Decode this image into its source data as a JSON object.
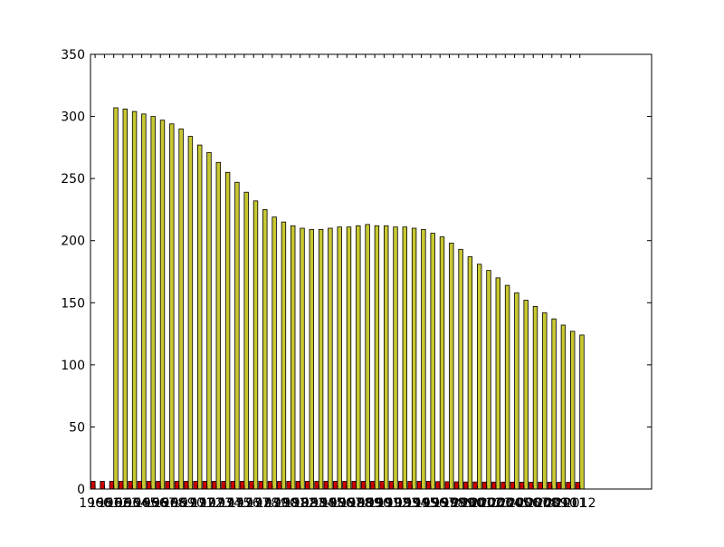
{
  "chart_data": {
    "type": "bar",
    "title": "",
    "xlabel": "",
    "ylabel": "",
    "ylim": [
      0,
      350
    ],
    "yticks": [
      0,
      50,
      100,
      150,
      200,
      250,
      300,
      350
    ],
    "grid": false,
    "categories": [
      "1960",
      "1961",
      "1962",
      "1963",
      "1964",
      "1965",
      "1966",
      "1967",
      "1968",
      "1969",
      "1970",
      "1971",
      "1972",
      "1973",
      "1974",
      "1975",
      "1976",
      "1977",
      "1978",
      "1979",
      "1980",
      "1981",
      "1982",
      "1983",
      "1984",
      "1985",
      "1986",
      "1987",
      "1988",
      "1989",
      "1990",
      "1991",
      "1992",
      "1993",
      "1994",
      "1995",
      "1996",
      "1997",
      "1998",
      "1999",
      "2000",
      "2001",
      "2002",
      "2003",
      "2004",
      "2005",
      "2006",
      "2007",
      "2008",
      "2009",
      "2010",
      "2011",
      "2012"
    ],
    "x_tick_labels": [
      "1960",
      "1961",
      "1962",
      "1963",
      "1964",
      "1965",
      "1966",
      "1967",
      "1968",
      "1969",
      "1970",
      "1971",
      "1972",
      "1973",
      "1974",
      "1975",
      "1976",
      "1977",
      "1978",
      "1979",
      "1980",
      "1981",
      "1982",
      "1983",
      "1984",
      "1985",
      "1986",
      "1987",
      "1988",
      "1989",
      "1990",
      "1991",
      "1992",
      "1993",
      "1994",
      "1995",
      "1996",
      "1997",
      "1998",
      "1999",
      "2000",
      "2001",
      "2002",
      "2003",
      "2004",
      "2005",
      "2006",
      "2007",
      "2008",
      "2009",
      "2010",
      "2011",
      "2012"
    ],
    "series": [
      {
        "color": "#cc0000",
        "values": [
          6.2,
          6.2,
          6.2,
          6.2,
          6.2,
          6.2,
          6.2,
          6.2,
          6.2,
          6.2,
          6.2,
          6.2,
          6.2,
          6.2,
          6.2,
          6.2,
          6.2,
          6.2,
          6.2,
          6.2,
          6.2,
          6.2,
          6.2,
          6.2,
          6.2,
          6.2,
          6.2,
          6.2,
          6.2,
          6.2,
          6.2,
          6.2,
          6.2,
          6.2,
          6.2,
          6.2,
          6.2,
          6.0,
          5.9,
          5.8,
          5.7,
          5.7,
          5.6,
          5.6,
          5.6,
          5.6,
          5.5,
          5.5,
          5.5,
          5.5,
          5.4,
          5.4,
          5.4
        ]
      },
      {
        "color": "#c8c832",
        "values": [
          0,
          0,
          307,
          306,
          304,
          302,
          300,
          297,
          294,
          290,
          284,
          277,
          271,
          263,
          255,
          247,
          239,
          232,
          225,
          219,
          215,
          212,
          210,
          209,
          209,
          210,
          211,
          211,
          212,
          213,
          212,
          212,
          211,
          211,
          210,
          209,
          206,
          203,
          198,
          193,
          187,
          181,
          176,
          170,
          164,
          158,
          152,
          147,
          142,
          137,
          132,
          127,
          124
        ]
      }
    ]
  }
}
